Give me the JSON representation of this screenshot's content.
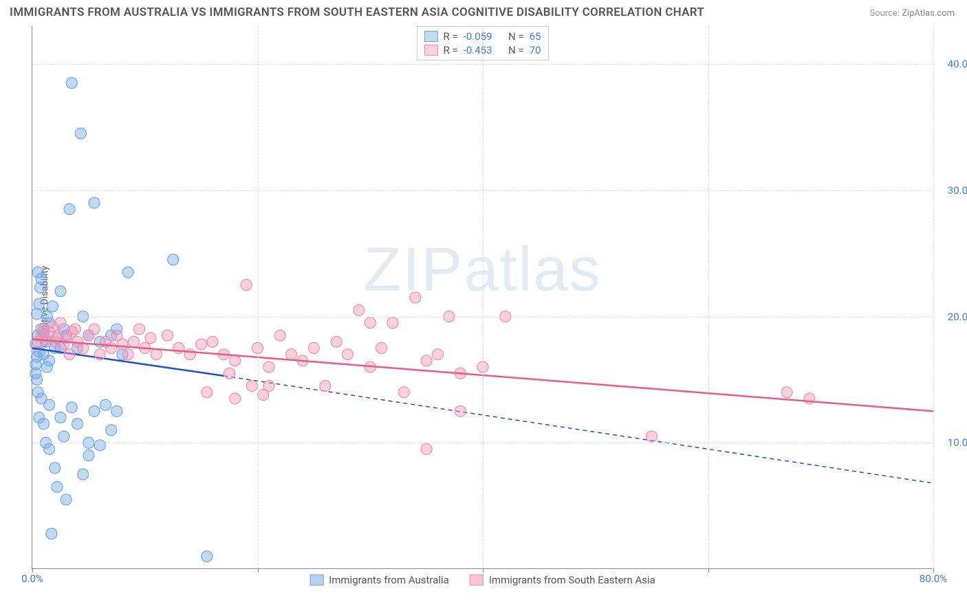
{
  "title": "IMMIGRANTS FROM AUSTRALIA VS IMMIGRANTS FROM SOUTH EASTERN ASIA COGNITIVE DISABILITY CORRELATION CHART",
  "source_label": "Source:",
  "source_value": "ZipAtlas.com",
  "y_axis_label": "Cognitive Disability",
  "watermark_bold": "ZIP",
  "watermark_thin": "atlas",
  "chart": {
    "type": "scatter",
    "xlim": [
      0,
      80
    ],
    "ylim": [
      0,
      43
    ],
    "x_ticks": [
      0,
      20,
      40,
      60,
      80
    ],
    "x_tick_labels": [
      "0.0%",
      "",
      "",
      "",
      "80.0%"
    ],
    "y_ticks": [
      10,
      20,
      30,
      40
    ],
    "y_tick_labels": [
      "10.0%",
      "20.0%",
      "30.0%",
      "40.0%"
    ],
    "grid_color": "#dddddd",
    "axis_color": "#888888",
    "background": "#ffffff",
    "tick_label_color_x0": "#3b7dd8",
    "tick_label_color_x1": "#3b7dd8",
    "tick_label_color_y": "#3b7dd8"
  },
  "series": [
    {
      "name": "Immigrants from Australia",
      "color_fill": "rgba(120,170,230,0.45)",
      "color_stroke": "#6fa8e8",
      "trend_color": "#1e50c8",
      "trend_solid": [
        [
          0,
          17.5
        ],
        [
          17,
          15.3
        ]
      ],
      "trend_dashed": [
        [
          17,
          15.3
        ],
        [
          80,
          6.8
        ]
      ],
      "R": "-0.059",
      "N": "65",
      "points": [
        [
          0.3,
          16.2
        ],
        [
          0.3,
          17.8
        ],
        [
          0.4,
          15.0
        ],
        [
          0.4,
          20.2
        ],
        [
          0.5,
          23.5
        ],
        [
          0.5,
          18.5
        ],
        [
          0.6,
          21.0
        ],
        [
          0.7,
          22.3
        ],
        [
          0.8,
          19.0
        ],
        [
          0.8,
          23.0
        ],
        [
          1.0,
          17.0
        ],
        [
          1.0,
          18.8
        ],
        [
          1.2,
          18.0
        ],
        [
          1.3,
          20.0
        ],
        [
          1.5,
          16.5
        ],
        [
          1.5,
          19.5
        ],
        [
          1.8,
          20.8
        ],
        [
          2.0,
          17.5
        ],
        [
          2.2,
          18.3
        ],
        [
          2.5,
          22.0
        ],
        [
          2.8,
          19.0
        ],
        [
          3.0,
          18.5
        ],
        [
          3.3,
          28.5
        ],
        [
          3.5,
          38.5
        ],
        [
          4.0,
          17.5
        ],
        [
          4.3,
          34.5
        ],
        [
          4.5,
          20.0
        ],
        [
          5.0,
          18.5
        ],
        [
          5.5,
          29.0
        ],
        [
          6.0,
          18.0
        ],
        [
          7.0,
          11.0
        ],
        [
          7.5,
          12.5
        ],
        [
          8.5,
          23.5
        ],
        [
          12.5,
          24.5
        ],
        [
          0.5,
          14.0
        ],
        [
          0.6,
          12.0
        ],
        [
          0.8,
          13.5
        ],
        [
          1.0,
          11.5
        ],
        [
          1.2,
          10.0
        ],
        [
          1.5,
          9.5
        ],
        [
          1.5,
          13.0
        ],
        [
          2.0,
          8.0
        ],
        [
          2.2,
          6.5
        ],
        [
          2.5,
          12.0
        ],
        [
          2.8,
          10.5
        ],
        [
          3.0,
          5.5
        ],
        [
          3.5,
          12.8
        ],
        [
          4.0,
          11.5
        ],
        [
          4.5,
          7.5
        ],
        [
          5.0,
          10.0
        ],
        [
          5.5,
          12.5
        ],
        [
          6.5,
          13.0
        ],
        [
          7.0,
          18.5
        ],
        [
          7.5,
          19.0
        ],
        [
          8.0,
          17.0
        ],
        [
          1.7,
          2.8
        ],
        [
          5.0,
          9.0
        ],
        [
          6.0,
          9.8
        ],
        [
          0.3,
          15.5
        ],
        [
          0.4,
          16.8
        ],
        [
          0.6,
          17.2
        ],
        [
          1.0,
          18.5
        ],
        [
          1.3,
          16.0
        ],
        [
          2.5,
          17.5
        ],
        [
          15.5,
          1.0
        ]
      ]
    },
    {
      "name": "Immigrants from South Eastern Asia",
      "color_fill": "rgba(245,150,180,0.45)",
      "color_stroke": "#f08fb0",
      "trend_color": "#e85a8a",
      "trend_solid": [
        [
          0,
          18.2
        ],
        [
          80,
          12.5
        ]
      ],
      "trend_dashed": null,
      "R": "-0.453",
      "N": "70",
      "points": [
        [
          0.5,
          18.0
        ],
        [
          0.8,
          18.5
        ],
        [
          1.0,
          19.0
        ],
        [
          1.2,
          18.2
        ],
        [
          1.5,
          18.8
        ],
        [
          1.8,
          19.2
        ],
        [
          2.0,
          18.0
        ],
        [
          2.3,
          18.5
        ],
        [
          2.5,
          19.5
        ],
        [
          2.8,
          17.8
        ],
        [
          3.0,
          18.3
        ],
        [
          3.3,
          17.0
        ],
        [
          3.5,
          18.8
        ],
        [
          3.8,
          19.0
        ],
        [
          4.0,
          18.0
        ],
        [
          4.5,
          17.5
        ],
        [
          5.0,
          18.5
        ],
        [
          5.5,
          19.0
        ],
        [
          6.0,
          17.0
        ],
        [
          6.5,
          18.0
        ],
        [
          7.0,
          17.5
        ],
        [
          7.5,
          18.5
        ],
        [
          8.0,
          17.8
        ],
        [
          8.5,
          17.0
        ],
        [
          9.0,
          18.0
        ],
        [
          9.5,
          19.0
        ],
        [
          10.0,
          17.5
        ],
        [
          10.5,
          18.3
        ],
        [
          11.0,
          17.0
        ],
        [
          12.0,
          18.5
        ],
        [
          13.0,
          17.5
        ],
        [
          14.0,
          17.0
        ],
        [
          15.0,
          17.8
        ],
        [
          16.0,
          18.0
        ],
        [
          17.0,
          17.0
        ],
        [
          18.0,
          16.5
        ],
        [
          19.0,
          22.5
        ],
        [
          20.0,
          17.5
        ],
        [
          21.0,
          16.0
        ],
        [
          22.0,
          18.5
        ],
        [
          23.0,
          17.0
        ],
        [
          24.0,
          16.5
        ],
        [
          25.0,
          17.5
        ],
        [
          26.0,
          14.5
        ],
        [
          27.0,
          18.0
        ],
        [
          28.0,
          17.0
        ],
        [
          29.0,
          20.5
        ],
        [
          30.0,
          16.0
        ],
        [
          31.0,
          17.5
        ],
        [
          32.0,
          19.5
        ],
        [
          33.0,
          14.0
        ],
        [
          34.0,
          21.5
        ],
        [
          35.0,
          16.5
        ],
        [
          36.0,
          17.0
        ],
        [
          37.0,
          20.0
        ],
        [
          38.0,
          15.5
        ],
        [
          40.0,
          16.0
        ],
        [
          42.0,
          20.0
        ],
        [
          15.5,
          14.0
        ],
        [
          18.0,
          13.5
        ],
        [
          19.5,
          14.5
        ],
        [
          20.5,
          13.8
        ],
        [
          17.5,
          15.5
        ],
        [
          35.0,
          9.5
        ],
        [
          38.0,
          12.5
        ],
        [
          55.0,
          10.5
        ],
        [
          67.0,
          14.0
        ],
        [
          69.0,
          13.5
        ],
        [
          30.0,
          19.5
        ],
        [
          21.0,
          14.5
        ]
      ]
    }
  ],
  "stats_box": {
    "r_label": "R =",
    "n_label": "N =",
    "value_color": "#3b7dd8",
    "label_color": "#555555"
  },
  "legend": {
    "items": [
      {
        "label": "Immigrants from Australia",
        "fill": "rgba(120,170,230,0.55)",
        "stroke": "#6fa8e8"
      },
      {
        "label": "Immigrants from South Eastern Asia",
        "fill": "rgba(245,150,180,0.55)",
        "stroke": "#f08fb0"
      }
    ]
  }
}
